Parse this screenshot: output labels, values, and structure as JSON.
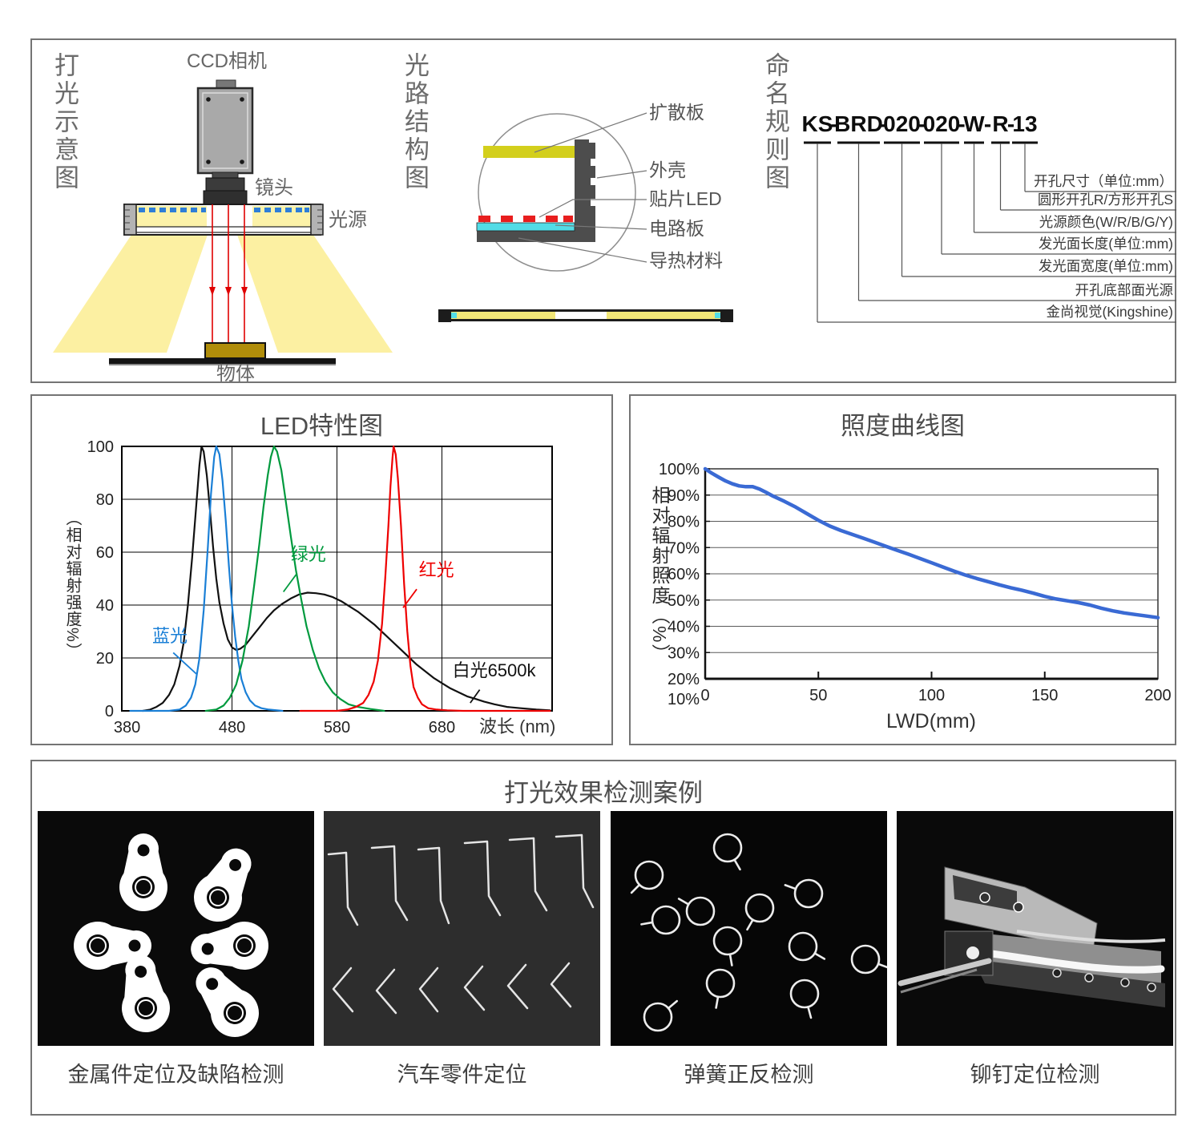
{
  "top_panel": {
    "lighting": {
      "title": "打光示意图",
      "camera_label": "CCD相机",
      "lens_label": "镜头",
      "light_label": "光源",
      "object_label": "物体"
    },
    "structure": {
      "title": "光路结构图",
      "labels": [
        "扩散板",
        "外壳",
        "贴片LED",
        "电路板",
        "导热材料"
      ]
    },
    "naming": {
      "title": "命名规则图",
      "model": "KS-BRD-020-020-W-R-13",
      "segments": [
        "KS",
        "BRD",
        "020",
        "020",
        "W",
        "R",
        "13"
      ],
      "labels": [
        "开孔尺寸（单位:mm）",
        "圆形开孔R/方形开孔S",
        "光源颜色(W/R/B/G/Y)",
        "发光面长度(单位:mm)",
        "发光面宽度(单位:mm)",
        "开孔底部面光源",
        "金尚视觉(Kingshine)"
      ]
    }
  },
  "chart_data": [
    {
      "id": "led",
      "type": "line",
      "title": "LED特性图",
      "xlabel": "波长 (nm)",
      "ylabel": "（相对辐射强度%）",
      "xlim": [
        375,
        785
      ],
      "ylim": [
        0,
        100
      ],
      "xticks": [
        380,
        480,
        580,
        680
      ],
      "yticks": [
        0,
        20,
        40,
        60,
        80,
        100
      ],
      "xgrid": [
        480,
        580,
        680
      ],
      "ygrid": [
        20,
        40,
        60,
        80
      ],
      "grid": true,
      "legend_position": "inline-annotations",
      "series": [
        {
          "name": "白光6500k",
          "color": "#111111",
          "points": [
            [
              395,
              0
            ],
            [
              402,
              0.5
            ],
            [
              408,
              1.5
            ],
            [
              414,
              3
            ],
            [
              420,
              6
            ],
            [
              425,
              10
            ],
            [
              430,
              17
            ],
            [
              434,
              26
            ],
            [
              438,
              40
            ],
            [
              442,
              58
            ],
            [
              446,
              78
            ],
            [
              449,
              93
            ],
            [
              451,
              100
            ],
            [
              453,
              98
            ],
            [
              456,
              89
            ],
            [
              459,
              76
            ],
            [
              462,
              62
            ],
            [
              465,
              50
            ],
            [
              468,
              41
            ],
            [
              472,
              33
            ],
            [
              476,
              27
            ],
            [
              480,
              24
            ],
            [
              484,
              23
            ],
            [
              488,
              23.5
            ],
            [
              493,
              25
            ],
            [
              499,
              28
            ],
            [
              506,
              31.5
            ],
            [
              513,
              35
            ],
            [
              520,
              38
            ],
            [
              528,
              40.5
            ],
            [
              536,
              42.5
            ],
            [
              544,
              44
            ],
            [
              552,
              44.7
            ],
            [
              560,
              44.5
            ],
            [
              568,
              44
            ],
            [
              576,
              43
            ],
            [
              584,
              41.5
            ],
            [
              592,
              39.5
            ],
            [
              600,
              37.5
            ],
            [
              608,
              35
            ],
            [
              616,
              32.5
            ],
            [
              624,
              29.5
            ],
            [
              632,
              26.5
            ],
            [
              640,
              23.5
            ],
            [
              648,
              20.5
            ],
            [
              656,
              17.5
            ],
            [
              664,
              15
            ],
            [
              672,
              12.5
            ],
            [
              680,
              10.5
            ],
            [
              688,
              8.5
            ],
            [
              696,
              7
            ],
            [
              704,
              5.5
            ],
            [
              712,
              4.5
            ],
            [
              720,
              3.5
            ],
            [
              730,
              2.5
            ],
            [
              742,
              1.5
            ],
            [
              755,
              1
            ],
            [
              770,
              0.5
            ],
            [
              783,
              0.2
            ]
          ]
        },
        {
          "name": "蓝光",
          "color": "#1a7fd6",
          "points": [
            [
              383,
              0
            ],
            [
              420,
              0
            ],
            [
              430,
              0.5
            ],
            [
              436,
              2
            ],
            [
              441,
              5
            ],
            [
              445,
              10
            ],
            [
              449,
              20
            ],
            [
              453,
              38
            ],
            [
              457,
              62
            ],
            [
              460,
              82
            ],
            [
              463,
              96
            ],
            [
              465,
              100
            ],
            [
              468,
              97
            ],
            [
              471,
              87
            ],
            [
              474,
              72
            ],
            [
              477,
              55
            ],
            [
              480,
              40
            ],
            [
              483,
              28
            ],
            [
              486,
              19
            ],
            [
              489,
              12
            ],
            [
              493,
              7
            ],
            [
              497,
              4
            ],
            [
              502,
              2
            ],
            [
              508,
              1
            ],
            [
              515,
              0.5
            ],
            [
              528,
              0
            ]
          ]
        },
        {
          "name": "绿光",
          "color": "#009a3e",
          "points": [
            [
              455,
              0
            ],
            [
              465,
              0.5
            ],
            [
              472,
              2
            ],
            [
              478,
              5
            ],
            [
              484,
              10
            ],
            [
              490,
              19
            ],
            [
              496,
              32
            ],
            [
              501,
              47
            ],
            [
              506,
              63
            ],
            [
              510,
              77
            ],
            [
              514,
              89
            ],
            [
              517,
              96
            ],
            [
              520,
              100
            ],
            [
              523,
              98
            ],
            [
              527,
              91
            ],
            [
              531,
              80
            ],
            [
              536,
              66
            ],
            [
              541,
              53
            ],
            [
              546,
              42
            ],
            [
              551,
              32
            ],
            [
              557,
              23
            ],
            [
              563,
              16
            ],
            [
              569,
              11
            ],
            [
              576,
              7
            ],
            [
              583,
              4.5
            ],
            [
              591,
              2.5
            ],
            [
              600,
              1.5
            ],
            [
              612,
              0.7
            ],
            [
              625,
              0
            ]
          ]
        },
        {
          "name": "红光",
          "color": "#ee0000",
          "points": [
            [
              545,
              0
            ],
            [
              580,
              0
            ],
            [
              590,
              0.5
            ],
            [
              598,
              1.5
            ],
            [
              605,
              3
            ],
            [
              610,
              6
            ],
            [
              615,
              11
            ],
            [
              619,
              19
            ],
            [
              623,
              33
            ],
            [
              626,
              50
            ],
            [
              629,
              70
            ],
            [
              631,
              85
            ],
            [
              633,
              96
            ],
            [
              634,
              100
            ],
            [
              636,
              97
            ],
            [
              638,
              88
            ],
            [
              641,
              70
            ],
            [
              644,
              48
            ],
            [
              647,
              30
            ],
            [
              650,
              17
            ],
            [
              653,
              9
            ],
            [
              657,
              5
            ],
            [
              661,
              2.5
            ],
            [
              667,
              1
            ],
            [
              675,
              0.5
            ],
            [
              685,
              0.2
            ],
            [
              700,
              0
            ],
            [
              783,
              0
            ]
          ]
        }
      ],
      "annotations": [
        {
          "text": "蓝光",
          "color": "#1a7fd6",
          "x": 404,
          "y": 26,
          "line": [
            [
              424,
              22
            ],
            [
              446,
              14
            ]
          ]
        },
        {
          "text": "绿光",
          "color": "#009a3e",
          "x": 536,
          "y": 57,
          "line": [
            [
              542,
              52
            ],
            [
              529,
              45
            ]
          ]
        },
        {
          "text": "红光",
          "color": "#ee0000",
          "x": 658,
          "y": 51,
          "line": [
            [
              656,
              46
            ],
            [
              643,
              39
            ]
          ]
        },
        {
          "text": "白光6500k",
          "color": "#111111",
          "x": 690,
          "y": 13,
          "line": [
            [
              716,
              8
            ],
            [
              707,
              3
            ]
          ]
        }
      ]
    },
    {
      "id": "illuminance",
      "type": "line",
      "title": "照度曲线图",
      "xlabel": "LWD(mm)",
      "ylabel": "相对辐射照度（%）",
      "xlim": [
        0,
        200
      ],
      "ylim": [
        20,
        100
      ],
      "xticks": [
        0,
        50,
        100,
        150,
        200
      ],
      "yticks": [
        100,
        90,
        80,
        70,
        60,
        50,
        40,
        30,
        20
      ],
      "ytick_suffix": "%",
      "ytick_below_axis": "10%",
      "ygrid": [
        30,
        40,
        50,
        60,
        70,
        80,
        90
      ],
      "grid": true,
      "series": [
        {
          "name": "相对辐射照度",
          "color": "#3a6ad4",
          "points": [
            [
              0,
              100
            ],
            [
              3,
              98.3
            ],
            [
              6,
              96.8
            ],
            [
              9,
              95.4
            ],
            [
              12,
              94.3
            ],
            [
              15,
              93.5
            ],
            [
              18,
              93.2
            ],
            [
              21,
              93.2
            ],
            [
              24,
              92.3
            ],
            [
              27,
              91
            ],
            [
              30,
              89.6
            ],
            [
              35,
              87.6
            ],
            [
              40,
              85.4
            ],
            [
              45,
              82.9
            ],
            [
              50,
              80.4
            ],
            [
              55,
              78.2
            ],
            [
              60,
              76.5
            ],
            [
              65,
              75
            ],
            [
              70,
              73.5
            ],
            [
              75,
              72
            ],
            [
              80,
              70.4
            ],
            [
              85,
              68.9
            ],
            [
              90,
              67.4
            ],
            [
              95,
              65.8
            ],
            [
              100,
              64.2
            ],
            [
              105,
              62.6
            ],
            [
              110,
              61
            ],
            [
              115,
              59.5
            ],
            [
              120,
              58.2
            ],
            [
              125,
              57
            ],
            [
              130,
              55.8
            ],
            [
              135,
              54.7
            ],
            [
              140,
              53.7
            ],
            [
              145,
              52.6
            ],
            [
              150,
              51.4
            ],
            [
              155,
              50.4
            ],
            [
              160,
              49.7
            ],
            [
              165,
              49
            ],
            [
              170,
              48.1
            ],
            [
              175,
              46.9
            ],
            [
              180,
              45.9
            ],
            [
              185,
              45.1
            ],
            [
              190,
              44.5
            ],
            [
              195,
              43.9
            ],
            [
              200,
              43.3
            ]
          ]
        }
      ]
    }
  ],
  "cases": {
    "title": "打光效果检测案例",
    "captions": [
      "金属件定位及缺陷检测",
      "汽车零件定位",
      "弹簧正反检测",
      "铆钉定位检测"
    ]
  }
}
